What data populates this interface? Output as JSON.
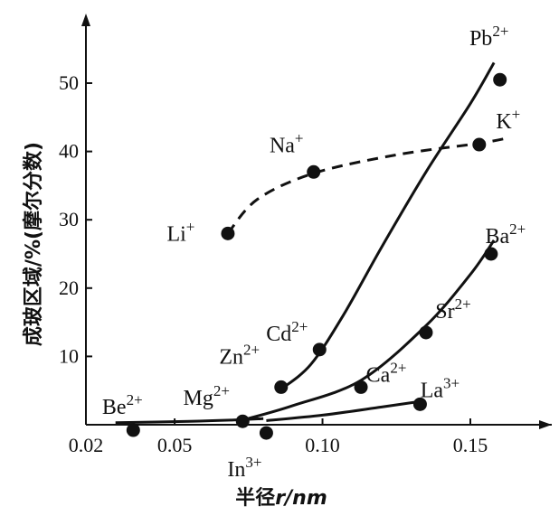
{
  "chart_data": {
    "type": "scatter",
    "ylabel": "成玻区域/%(摩尔分数)",
    "xlabel_prefix": "半径",
    "xlabel_var": "r",
    "xlabel_unit": "/nm",
    "xlim": [
      0.02,
      0.17
    ],
    "ylim": [
      0,
      57
    ],
    "xticks": [
      0.02,
      0.05,
      0.1,
      0.15
    ],
    "xtick_labels": [
      "0.02",
      "0.05",
      "0.10",
      "0.15"
    ],
    "yticks": [
      10,
      20,
      30,
      40,
      50
    ],
    "ytick_labels": [
      "10",
      "20",
      "30",
      "40",
      "50"
    ],
    "points": [
      {
        "ion": "Li",
        "charge": "+",
        "r": 0.068,
        "value": 28
      },
      {
        "ion": "Na",
        "charge": "+",
        "r": 0.097,
        "value": 37
      },
      {
        "ion": "K",
        "charge": "+",
        "r": 0.153,
        "value": 41
      },
      {
        "ion": "Pb",
        "charge": "2+",
        "r": 0.16,
        "value": 50.5
      },
      {
        "ion": "Cd",
        "charge": "2+",
        "r": 0.099,
        "value": 11
      },
      {
        "ion": "Zn",
        "charge": "2+",
        "r": 0.086,
        "value": 5.5
      },
      {
        "ion": "Ba",
        "charge": "2+",
        "r": 0.157,
        "value": 25
      },
      {
        "ion": "Sr",
        "charge": "2+",
        "r": 0.135,
        "value": 13.5
      },
      {
        "ion": "Ca",
        "charge": "2+",
        "r": 0.113,
        "value": 5.5
      },
      {
        "ion": "La",
        "charge": "3+",
        "r": 0.133,
        "value": 3
      },
      {
        "ion": "Mg",
        "charge": "2+",
        "r": 0.073,
        "value": 0.5
      },
      {
        "ion": "In",
        "charge": "3+",
        "r": 0.081,
        "value": -1.2
      },
      {
        "ion": "Be",
        "charge": "2+",
        "r": 0.036,
        "value": -0.8
      }
    ],
    "curves": [
      {
        "style": "dashed",
        "points": [
          [
            0.068,
            28
          ],
          [
            0.078,
            33
          ],
          [
            0.097,
            36.8
          ],
          [
            0.125,
            39.5
          ],
          [
            0.153,
            41.2
          ],
          [
            0.163,
            42
          ]
        ]
      },
      {
        "style": "solid",
        "points": [
          [
            0.086,
            5.2
          ],
          [
            0.096,
            8.8
          ],
          [
            0.107,
            16
          ],
          [
            0.12,
            26
          ],
          [
            0.135,
            37
          ],
          [
            0.15,
            47
          ],
          [
            0.158,
            53
          ]
        ]
      },
      {
        "style": "solid",
        "points": [
          [
            0.074,
            0.8
          ],
          [
            0.09,
            2.8
          ],
          [
            0.113,
            6.5
          ],
          [
            0.135,
            14.5
          ],
          [
            0.15,
            22
          ],
          [
            0.158,
            27
          ]
        ]
      },
      {
        "style": "solid",
        "points": [
          [
            0.081,
            0.6
          ],
          [
            0.1,
            1.4
          ],
          [
            0.12,
            2.6
          ],
          [
            0.133,
            3.4
          ]
        ]
      },
      {
        "style": "solid",
        "points": [
          [
            0.03,
            0.3
          ],
          [
            0.055,
            0.5
          ],
          [
            0.07,
            0.7
          ],
          [
            0.08,
            0.9
          ]
        ]
      }
    ]
  }
}
